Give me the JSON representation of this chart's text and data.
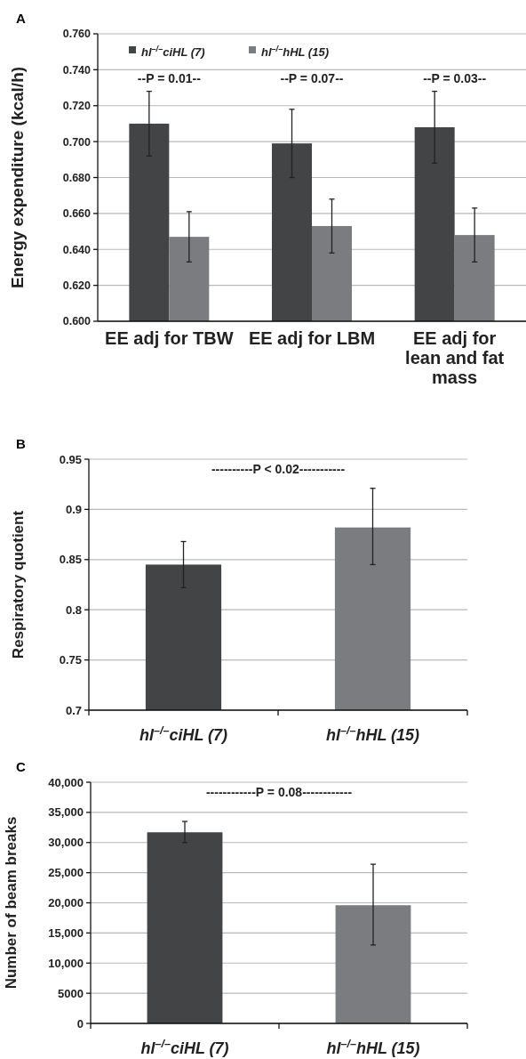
{
  "chart_data": [
    {
      "type": "bar",
      "title": "A",
      "ylabel": "Energy expenditure (kcal/h)",
      "categories": [
        "EE adj for TBW",
        "EE adj for LBM",
        "EE adj for lean and fat mass"
      ],
      "series": [
        {
          "name": "hl$^{–/–}$ciHL (7)",
          "color": "#434446",
          "values": [
            0.71,
            0.699,
            0.708
          ],
          "errors": [
            [
              0.692,
              0.728
            ],
            [
              0.68,
              0.718
            ],
            [
              0.688,
              0.728
            ]
          ]
        },
        {
          "name": "hl$^{–/–}$hHL (15)",
          "color": "#7b7c7f",
          "values": [
            0.647,
            0.653,
            0.648
          ],
          "errors": [
            [
              0.633,
              0.661
            ],
            [
              0.638,
              0.668
            ],
            [
              0.633,
              0.663
            ]
          ]
        }
      ],
      "ylim": [
        0.6,
        0.76
      ],
      "yticks": [
        {
          "value": 0.6,
          "label": "0.600"
        },
        {
          "value": 0.62,
          "label": "0.620"
        },
        {
          "value": 0.64,
          "label": "0.640"
        },
        {
          "value": 0.66,
          "label": "0.660"
        },
        {
          "value": 0.68,
          "label": "0.680"
        },
        {
          "value": 0.7,
          "label": "0.700"
        },
        {
          "value": 0.72,
          "label": "0.720"
        },
        {
          "value": 0.74,
          "label": "0.740"
        },
        {
          "value": 0.76,
          "label": "0.760"
        }
      ],
      "grid": "y",
      "legend": "top left",
      "annotations": [
        "--P = 0.01--",
        "--P = 0.07--",
        "--P = 0.03--"
      ]
    },
    {
      "type": "bar",
      "title": "B",
      "ylabel": "Respiratory quotient",
      "categories": [
        "hl$^{–/–}$ciHL (7)",
        "hl$^{–/–}$hHL (15)"
      ],
      "values": [
        0.845,
        0.882
      ],
      "colors": [
        "#434446",
        "#7b7c7f"
      ],
      "errors": [
        [
          0.822,
          0.868
        ],
        [
          0.845,
          0.921
        ]
      ],
      "ylim": [
        0.7,
        0.95
      ],
      "yticks": [
        0.7,
        0.75,
        0.8,
        0.85,
        0.9,
        0.95
      ],
      "grid": "y",
      "annotations": [
        "----------P < 0.02-----------"
      ]
    },
    {
      "type": "bar",
      "title": "C",
      "ylabel": "Number of beam breaks",
      "categories": [
        "hl$^{–/–}$ciHL (7)",
        "hl$^{–/–}$hHL (15)"
      ],
      "values": [
        31700,
        19600
      ],
      "colors": [
        "#434446",
        "#7b7c7f"
      ],
      "errors": [
        [
          30000,
          33500
        ],
        [
          13000,
          26400
        ]
      ],
      "ylim": [
        0,
        40000
      ],
      "yticks": [
        0,
        5000,
        {
          "value": 10000,
          "label": "10,000"
        },
        {
          "value": 15000,
          "label": "15,000"
        },
        {
          "value": 20000,
          "label": "20,000"
        },
        {
          "value": 25000,
          "label": "25,000"
        },
        {
          "value": 30000,
          "label": "30,000"
        },
        {
          "value": 35000,
          "label": "35,000"
        },
        {
          "value": 40000,
          "label": "40,000"
        }
      ],
      "grid": "y",
      "annotations": [
        "------------P = 0.08------------"
      ]
    }
  ]
}
